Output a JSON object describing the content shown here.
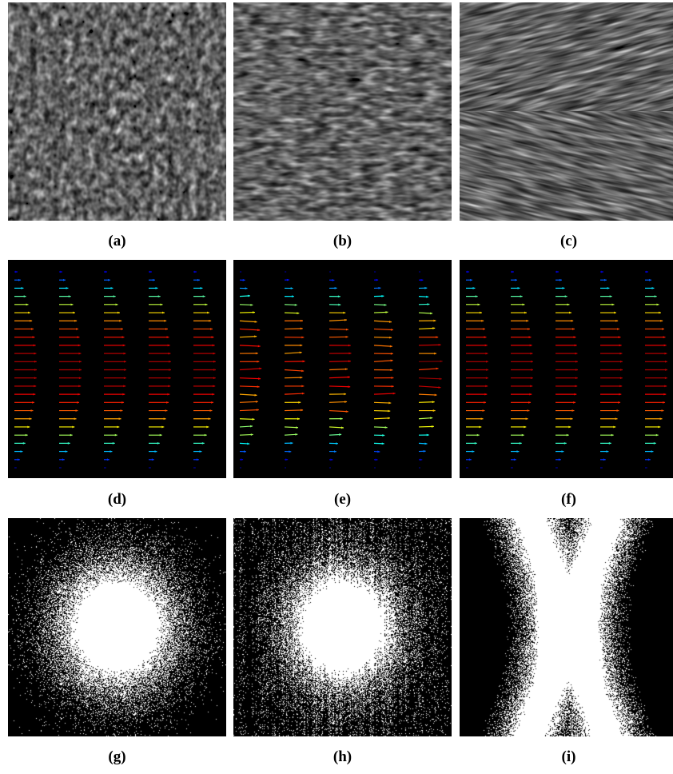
{
  "figure": {
    "panels": [
      {
        "id": "a",
        "caption": "(a)",
        "kind": "texture-isotropic"
      },
      {
        "id": "b",
        "caption": "(b)",
        "kind": "texture-horizontal"
      },
      {
        "id": "c",
        "caption": "(c)",
        "kind": "texture-herringbone"
      },
      {
        "id": "d",
        "caption": "(d)",
        "kind": "vector-field-parabolic"
      },
      {
        "id": "e",
        "caption": "(e)",
        "kind": "vector-field-noisy"
      },
      {
        "id": "f",
        "caption": "(f)",
        "kind": "vector-field-parabolic"
      },
      {
        "id": "g",
        "caption": "(g)",
        "kind": "spectrum-isotropic"
      },
      {
        "id": "h",
        "caption": "(h)",
        "kind": "spectrum-vertical-streaks"
      },
      {
        "id": "i",
        "caption": "(i)",
        "kind": "spectrum-x-shape"
      }
    ]
  },
  "colors": {
    "background": "#ffffff",
    "panel_bg": "#000000",
    "jet_low": "#1e90ff",
    "jet_mid": "#2ee84a",
    "jet_high": "#ffe61e",
    "jet_peak": "#ff2a00"
  }
}
